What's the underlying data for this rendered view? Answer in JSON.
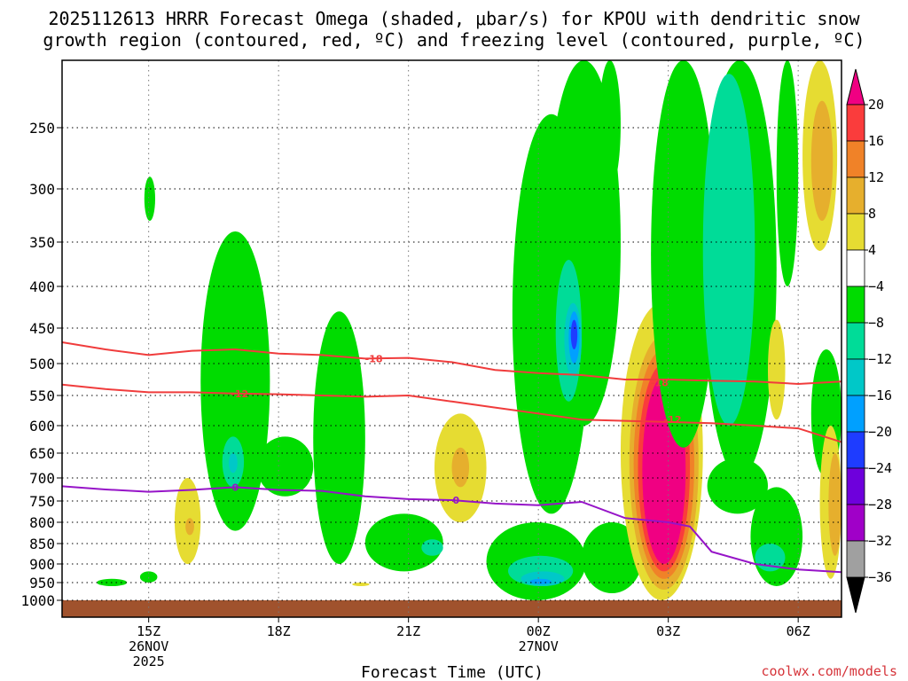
{
  "title_line1": "2025112613 HRRR Forecast Omega (shaded, μbar/s) for KPOU with dendritic snow",
  "title_line2": "growth region (contoured, red, ºC) and freezing level (contoured, purple, ºC)",
  "credit": "coolwx.com/models",
  "chart_data": {
    "type": "heatmap",
    "title": "2025112613 HRRR Forecast Omega (shaded, μbar/s) for KPOU with dendritic snow growth region (contoured, red, ºC) and freezing level (contoured, purple, ºC)",
    "xlabel": "Forecast Time (UTC)",
    "ylabel": "",
    "x_range_hours": [
      13.0,
      31.0
    ],
    "y_range_hPa": [
      200,
      1020
    ],
    "y_ticks": [
      {
        "value": 250,
        "label": "250"
      },
      {
        "value": 300,
        "label": "300"
      },
      {
        "value": 350,
        "label": "350"
      },
      {
        "value": 400,
        "label": "400"
      },
      {
        "value": 450,
        "label": "450"
      },
      {
        "value": 500,
        "label": "500"
      },
      {
        "value": 550,
        "label": "550"
      },
      {
        "value": 600,
        "label": "600"
      },
      {
        "value": 650,
        "label": "650"
      },
      {
        "value": 700,
        "label": "700"
      },
      {
        "value": 750,
        "label": "750"
      },
      {
        "value": 800,
        "label": "800"
      },
      {
        "value": 850,
        "label": "850"
      },
      {
        "value": 900,
        "label": "900"
      },
      {
        "value": 950,
        "label": "950"
      },
      {
        "value": 1000,
        "label": "1000"
      }
    ],
    "x_ticks": [
      {
        "hour": 15,
        "label": "15Z",
        "sub1": "26NOV",
        "sub2": "2025"
      },
      {
        "hour": 18,
        "label": "18Z",
        "sub1": "",
        "sub2": ""
      },
      {
        "hour": 21,
        "label": "21Z",
        "sub1": "",
        "sub2": ""
      },
      {
        "hour": 24,
        "label": "00Z",
        "sub1": "27NOV",
        "sub2": ""
      },
      {
        "hour": 27,
        "label": "03Z",
        "sub1": "",
        "sub2": ""
      },
      {
        "hour": 30,
        "label": "06Z",
        "sub1": "",
        "sub2": ""
      }
    ],
    "grid": true,
    "colorbar": {
      "levels": [
        -40,
        -36,
        -32,
        -28,
        -24,
        -20,
        -16,
        -12,
        -8,
        -4,
        4,
        8,
        12,
        16,
        20,
        24
      ],
      "colors": [
        "#000000",
        "#a0a0a0",
        "#a000c8",
        "#6e00dc",
        "#1e3cff",
        "#00a0ff",
        "#00c8c8",
        "#00dc98",
        "#00dc00",
        "#ffffff",
        "#e6dc32",
        "#e6af2d",
        "#f08228",
        "#fa3c3c",
        "#f00082"
      ],
      "tick_labels": [
        "20",
        "16",
        "12",
        "8",
        "4",
        "−4",
        "−8",
        "−12",
        "−16",
        "−20",
        "−24",
        "−28",
        "−32",
        "−36"
      ]
    },
    "omega_cells": [
      {
        "x": [
          13.8,
          14.5
        ],
        "y": [
          940,
          960
        ],
        "value": -6
      },
      {
        "x": [
          14.8,
          15.2
        ],
        "y": [
          920,
          950
        ],
        "value": -6
      },
      {
        "x": [
          14.9,
          15.15
        ],
        "y": [
          290,
          330
        ],
        "value": -6
      },
      {
        "x": [
          15.6,
          16.2
        ],
        "y": [
          700,
          900
        ],
        "value": 6
      },
      {
        "x": [
          15.85,
          16.05
        ],
        "y": [
          790,
          830
        ],
        "value": 10
      },
      {
        "x": [
          16.2,
          17.8
        ],
        "y": [
          340,
          820
        ],
        "value": -6
      },
      {
        "x": [
          16.7,
          17.2
        ],
        "y": [
          620,
          720
        ],
        "value": -10
      },
      {
        "x": [
          16.85,
          17.05
        ],
        "y": [
          650,
          690
        ],
        "value": -14
      },
      {
        "x": [
          17.5,
          18.8
        ],
        "y": [
          620,
          740
        ],
        "value": -6
      },
      {
        "x": [
          18.8,
          20.0
        ],
        "y": [
          430,
          900
        ],
        "value": -6
      },
      {
        "x": [
          19.7,
          20.1
        ],
        "y": [
          950,
          960
        ],
        "value": 6
      },
      {
        "x": [
          20.0,
          21.8
        ],
        "y": [
          780,
          920
        ],
        "value": -6
      },
      {
        "x": [
          21.3,
          21.8
        ],
        "y": [
          840,
          880
        ],
        "value": -10
      },
      {
        "x": [
          21.6,
          22.8
        ],
        "y": [
          580,
          800
        ],
        "value": 6
      },
      {
        "x": [
          22.0,
          22.4
        ],
        "y": [
          640,
          720
        ],
        "value": 10
      },
      {
        "x": [
          22.8,
          25.1
        ],
        "y": [
          800,
          1000
        ],
        "value": -6
      },
      {
        "x": [
          23.3,
          24.8
        ],
        "y": [
          880,
          960
        ],
        "value": -10
      },
      {
        "x": [
          23.6,
          24.6
        ],
        "y": [
          920,
          960
        ],
        "value": -14
      },
      {
        "x": [
          23.8,
          24.3
        ],
        "y": [
          940,
          955
        ],
        "value": -18
      },
      {
        "x": [
          23.4,
          25.2
        ],
        "y": [
          240,
          780
        ],
        "value": -6
      },
      {
        "x": [
          24.2,
          25.9
        ],
        "y": [
          200,
          600
        ],
        "value": -6
      },
      {
        "x": [
          24.4,
          25.0
        ],
        "y": [
          370,
          560
        ],
        "value": -10
      },
      {
        "x": [
          24.6,
          25.0
        ],
        "y": [
          420,
          520
        ],
        "value": -14
      },
      {
        "x": [
          24.7,
          24.95
        ],
        "y": [
          430,
          500
        ],
        "value": -20
      },
      {
        "x": [
          24.75,
          24.9
        ],
        "y": [
          440,
          480
        ],
        "value": -24
      },
      {
        "x": [
          25.4,
          25.9
        ],
        "y": [
          200,
          300
        ],
        "value": -6
      },
      {
        "x": [
          25.0,
          26.4
        ],
        "y": [
          800,
          980
        ],
        "value": -6
      },
      {
        "x": [
          25.9,
          27.8
        ],
        "y": [
          420,
          1000
        ],
        "value": 6
      },
      {
        "x": [
          26.1,
          27.7
        ],
        "y": [
          460,
          970
        ],
        "value": 10
      },
      {
        "x": [
          26.2,
          27.6
        ],
        "y": [
          480,
          940
        ],
        "value": 14
      },
      {
        "x": [
          26.3,
          27.5
        ],
        "y": [
          500,
          920
        ],
        "value": 18
      },
      {
        "x": [
          26.4,
          27.4
        ],
        "y": [
          520,
          900
        ],
        "value": 22
      },
      {
        "x": [
          26.6,
          28.1
        ],
        "y": [
          200,
          640
        ],
        "value": -6
      },
      {
        "x": [
          27.8,
          29.5
        ],
        "y": [
          200,
          700
        ],
        "value": -6
      },
      {
        "x": [
          27.8,
          29.0
        ],
        "y": [
          210,
          600
        ],
        "value": -10
      },
      {
        "x": [
          27.9,
          29.3
        ],
        "y": [
          660,
          780
        ],
        "value": -6
      },
      {
        "x": [
          28.9,
          30.1
        ],
        "y": [
          720,
          960
        ],
        "value": -6
      },
      {
        "x": [
          29.0,
          29.7
        ],
        "y": [
          850,
          920
        ],
        "value": -10
      },
      {
        "x": [
          29.3,
          29.7
        ],
        "y": [
          440,
          590
        ],
        "value": 6
      },
      {
        "x": [
          29.5,
          30.0
        ],
        "y": [
          200,
          400
        ],
        "value": -6
      },
      {
        "x": [
          30.1,
          30.9
        ],
        "y": [
          200,
          360
        ],
        "value": 6
      },
      {
        "x": [
          30.3,
          30.8
        ],
        "y": [
          230,
          330
        ],
        "value": 10
      },
      {
        "x": [
          30.3,
          31.0
        ],
        "y": [
          480,
          700
        ],
        "value": -6
      },
      {
        "x": [
          30.5,
          31.0
        ],
        "y": [
          600,
          940
        ],
        "value": 6
      },
      {
        "x": [
          30.7,
          31.0
        ],
        "y": [
          650,
          880
        ],
        "value": 10
      }
    ],
    "contours": [
      {
        "name": "-18",
        "color": "#f03c3c",
        "label": "-18",
        "label_at": {
          "hour": 20.2,
          "hPa": 493
        },
        "points": [
          [
            13.0,
            470
          ],
          [
            14.0,
            480
          ],
          [
            15.0,
            488
          ],
          [
            16.0,
            482
          ],
          [
            17.0,
            480
          ],
          [
            18.0,
            486
          ],
          [
            19.0,
            488
          ],
          [
            20.0,
            493
          ],
          [
            21.0,
            492
          ],
          [
            22.0,
            498
          ],
          [
            23.0,
            510
          ],
          [
            24.0,
            515
          ],
          [
            25.0,
            518
          ],
          [
            26.0,
            525
          ],
          [
            27.0,
            525
          ],
          [
            28.0,
            527
          ],
          [
            29.0,
            528
          ],
          [
            30.0,
            532
          ],
          [
            31.0,
            528
          ]
        ]
      },
      {
        "name": "-12",
        "color": "#f03c3c",
        "label": "-12",
        "label_at": {
          "hour": 17.1,
          "hPa": 547
        },
        "points": [
          [
            13.0,
            533
          ],
          [
            14.0,
            540
          ],
          [
            15.0,
            545
          ],
          [
            16.0,
            545
          ],
          [
            17.0,
            547
          ],
          [
            18.0,
            548
          ],
          [
            19.0,
            550
          ],
          [
            20.0,
            552
          ],
          [
            21.0,
            550
          ],
          [
            22.0,
            560
          ],
          [
            23.0,
            570
          ],
          [
            24.0,
            580
          ],
          [
            25.0,
            590
          ],
          [
            26.0,
            592
          ],
          [
            27.0,
            594
          ],
          [
            28.0,
            596
          ],
          [
            29.0,
            600
          ],
          [
            30.0,
            605
          ],
          [
            31.0,
            630
          ]
        ]
      },
      {
        "name": "-12 (second segment)",
        "color": "#f03c3c",
        "label": "-12",
        "label_at": {
          "hour": 27.1,
          "hPa": 590
        },
        "points": []
      },
      {
        "name": "-18 (second segment)",
        "color": "#f03c3c",
        "label": "-18",
        "label_at": {
          "hour": 26.8,
          "hPa": 530
        },
        "points": []
      },
      {
        "name": "0",
        "color": "#9614c8",
        "label": "0",
        "label_at": {
          "hour": 17.0,
          "hPa": 720
        },
        "points": [
          [
            13.0,
            718
          ],
          [
            14.0,
            725
          ],
          [
            15.0,
            730
          ],
          [
            16.0,
            726
          ],
          [
            17.0,
            720
          ],
          [
            18.0,
            726
          ],
          [
            19.0,
            728
          ],
          [
            20.0,
            740
          ],
          [
            21.0,
            746
          ],
          [
            22.0,
            748
          ],
          [
            23.0,
            756
          ],
          [
            24.0,
            760
          ],
          [
            25.0,
            752
          ],
          [
            26.0,
            790
          ],
          [
            27.0,
            800
          ],
          [
            27.5,
            810
          ],
          [
            28.0,
            870
          ],
          [
            29.0,
            900
          ],
          [
            30.0,
            915
          ],
          [
            31.0,
            922
          ]
        ]
      },
      {
        "name": "0 (second label)",
        "color": "#9614c8",
        "label": "0",
        "label_at": {
          "hour": 22.1,
          "hPa": 748
        },
        "points": []
      }
    ],
    "ground": {
      "from_hPa": 1000,
      "to_hPa": 1020,
      "color": "#a0522d"
    }
  }
}
